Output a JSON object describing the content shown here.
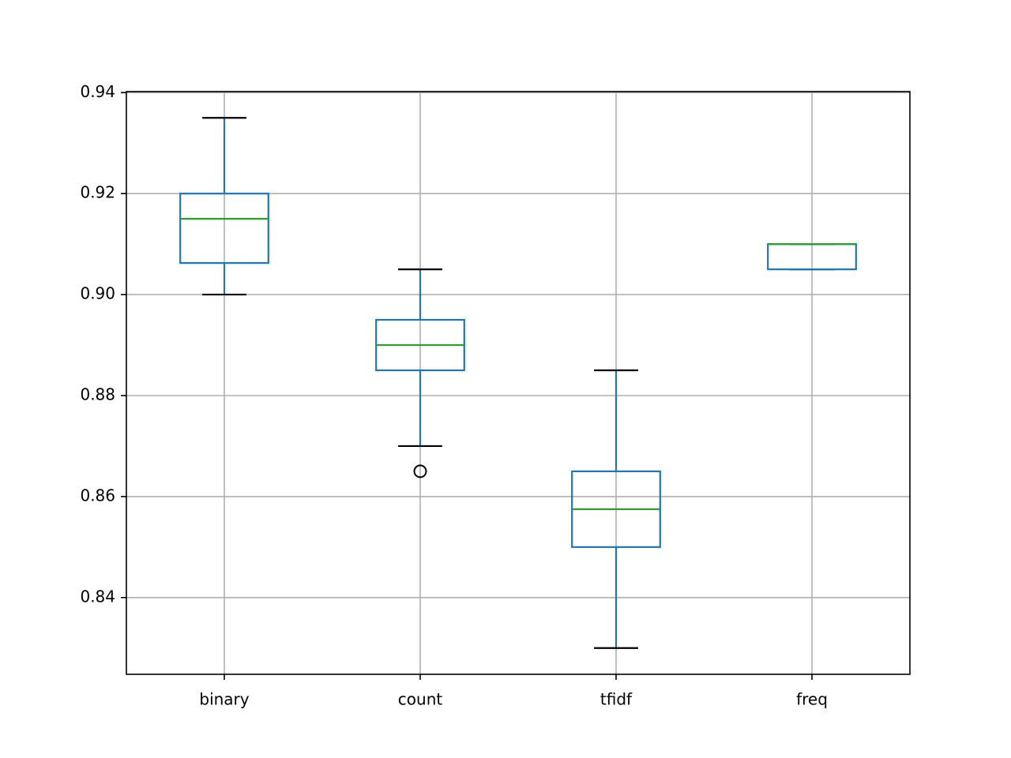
{
  "chart_data": {
    "type": "box",
    "categories": [
      "binary",
      "count",
      "tfidf",
      "freq"
    ],
    "boxes": [
      {
        "min": 0.9,
        "q1": 0.90625,
        "median": 0.915,
        "q3": 0.92,
        "max": 0.935,
        "outliers": []
      },
      {
        "min": 0.87,
        "q1": 0.885,
        "median": 0.89,
        "q3": 0.895,
        "max": 0.905,
        "outliers": [
          0.865
        ]
      },
      {
        "min": 0.83,
        "q1": 0.85,
        "median": 0.8575,
        "q3": 0.865,
        "max": 0.885,
        "outliers": []
      },
      {
        "min": 0.905,
        "q1": 0.905,
        "median": 0.91,
        "q3": 0.91,
        "max": 0.91,
        "outliers": []
      }
    ],
    "box_color": "#1f77b4",
    "median_color": "#2ca02c",
    "cap_color": "#000000",
    "ylim": [
      0.8248,
      0.9402
    ],
    "yticks": [
      {
        "value": 0.84,
        "label": "0.84"
      },
      {
        "value": 0.86,
        "label": "0.86"
      },
      {
        "value": 0.88,
        "label": "0.88"
      },
      {
        "value": 0.9,
        "label": "0.90"
      },
      {
        "value": 0.92,
        "label": "0.92"
      },
      {
        "value": 0.94,
        "label": "0.94"
      }
    ],
    "grid": true
  }
}
